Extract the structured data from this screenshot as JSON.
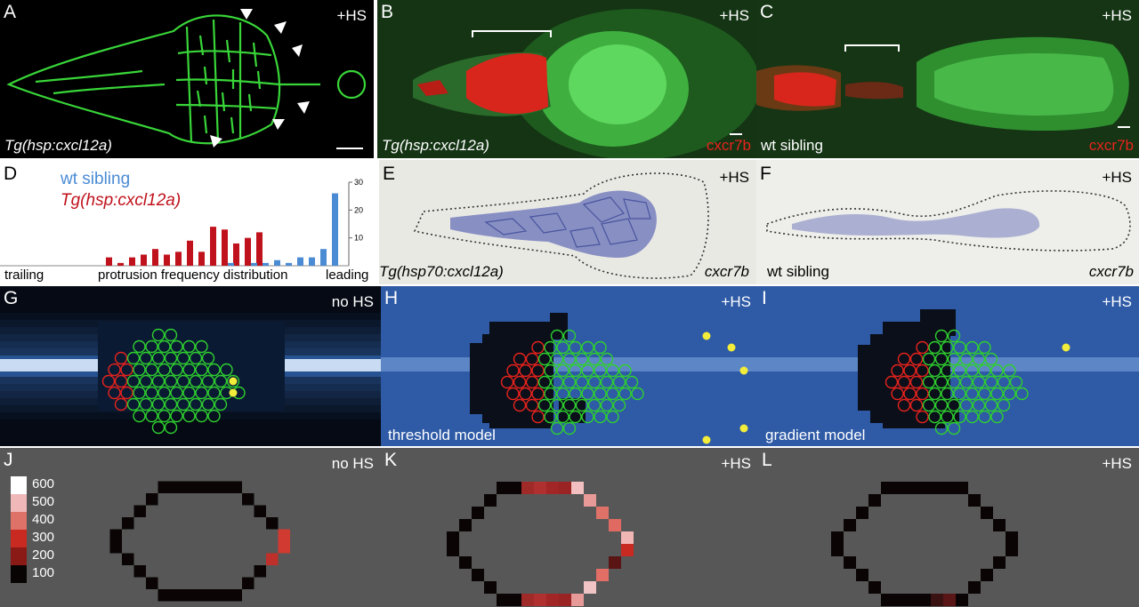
{
  "panels": {
    "A": {
      "letter": "A",
      "hs": "+HS",
      "genotype": "Tg(hsp:cxcl12a)"
    },
    "B": {
      "letter": "B",
      "hs": "+HS",
      "genotype": "Tg(hsp:cxcl12a)",
      "marker": "cxcr7b"
    },
    "C": {
      "letter": "C",
      "hs": "+HS",
      "genotype": "wt sibling",
      "marker": "cxcr7b"
    },
    "D": {
      "letter": "D",
      "legend_wt": "wt sibling",
      "legend_tg": "Tg(hsp:cxcl12a)",
      "xlabel": "protrusion frequency distribution",
      "x_left": "trailing",
      "x_right": "leading"
    },
    "E": {
      "letter": "E",
      "hs": "+HS",
      "genotype": "Tg(hsp70:cxcl12a)",
      "gene": "cxcr7b"
    },
    "F": {
      "letter": "F",
      "hs": "+HS",
      "genotype": "wt sibling",
      "gene": "cxcr7b"
    },
    "G": {
      "letter": "G",
      "hs": "no HS"
    },
    "H": {
      "letter": "H",
      "hs": "+HS",
      "model": "threshold model"
    },
    "I": {
      "letter": "I",
      "hs": "+HS",
      "model": "gradient model"
    },
    "J": {
      "letter": "J",
      "hs": "no HS"
    },
    "K": {
      "letter": "K",
      "hs": "+HS"
    },
    "L": {
      "letter": "L",
      "hs": "+HS"
    }
  },
  "colors": {
    "green": "#2fd02f",
    "red": "#e8231c",
    "blue": "#2e5aa6",
    "wt": "#4a8bd4",
    "tg": "#c0121c",
    "grey": "#575757"
  },
  "colorbar": {
    "ticks": [
      "600",
      "500",
      "400",
      "300",
      "200",
      "100"
    ]
  },
  "chart_data": {
    "type": "bar",
    "xlabel": "protrusion frequency distribution",
    "ylim": [
      0,
      30
    ],
    "yticks": [
      "30",
      "20",
      "10"
    ],
    "series": [
      {
        "name": "wt sibling",
        "values": [
          0,
          0,
          0,
          0,
          0,
          0,
          0,
          0,
          0,
          0,
          1,
          0,
          1,
          1,
          2,
          1,
          3,
          3,
          6,
          26
        ]
      },
      {
        "name": "Tg(hsp:cxcl12a)",
        "values": [
          3,
          1,
          3,
          4,
          6,
          4,
          5,
          9,
          5,
          14,
          13,
          8,
          10,
          12,
          0,
          0,
          0,
          0,
          0,
          0
        ]
      }
    ]
  }
}
